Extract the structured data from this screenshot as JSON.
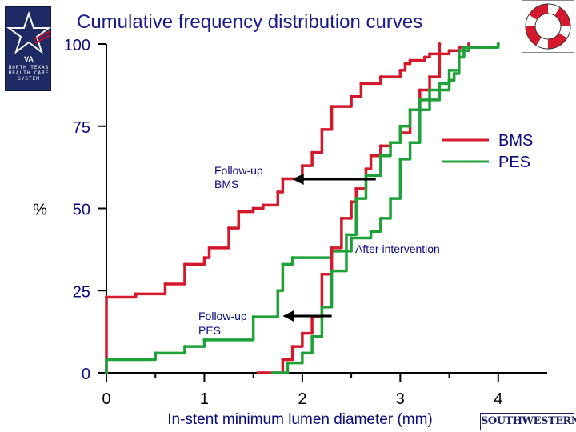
{
  "slide": {
    "title": "Cumulative frequency distribution curves",
    "logo_va_text": "NORTH TEXAS\nHEALTH CARE\nSYSTEM",
    "logo_va_initials": "VA",
    "logo_sw_text": "SOUTHWESTERN"
  },
  "chart_data": {
    "type": "line",
    "title": "Cumulative frequency distribution curves",
    "xlabel": "In-stent minimum lumen diameter (mm)",
    "ylabel": "%",
    "xlim": [
      0,
      4.5
    ],
    "ylim": [
      0,
      100
    ],
    "x_ticks": [
      "0",
      "1",
      "2",
      "3",
      "4"
    ],
    "y_ticks": [
      "0",
      "25",
      "50",
      "75",
      "100"
    ],
    "grid": false,
    "legend": {
      "position": "top-right",
      "entries": [
        {
          "name": "BMS",
          "color": "#d3192b"
        },
        {
          "name": "PES",
          "color": "#1fa13a"
        }
      ]
    },
    "series": [
      {
        "name": "BMS",
        "group": "Follow-up",
        "color": "#d3192b",
        "x": [
          0.0,
          0.0,
          0.3,
          0.6,
          0.8,
          1.0,
          1.05,
          1.25,
          1.35,
          1.5,
          1.6,
          1.75,
          1.8,
          2.0,
          2.1,
          2.2,
          2.3,
          2.5,
          2.6,
          2.8,
          3.0,
          3.05,
          3.1,
          3.25,
          3.3,
          3.4,
          3.5,
          3.6,
          3.7
        ],
        "y": [
          0,
          23,
          24,
          27,
          33,
          35,
          38,
          44,
          49,
          50,
          51,
          55,
          59,
          63,
          67,
          74,
          81,
          84,
          88,
          90,
          92,
          94,
          95,
          96,
          97,
          97,
          98,
          99,
          100
        ]
      },
      {
        "name": "PES",
        "group": "Follow-up",
        "color": "#1fa13a",
        "x": [
          0.0,
          0.0,
          0.5,
          0.8,
          1.0,
          1.5,
          1.75,
          1.8,
          1.9,
          2.0,
          2.3,
          2.5,
          2.7,
          2.8,
          2.9,
          3.0,
          3.1,
          3.2,
          3.3,
          3.4,
          3.5,
          3.55,
          3.6,
          3.7,
          3.8,
          3.9,
          4.0
        ],
        "y": [
          0,
          4,
          6,
          8,
          10,
          17,
          25,
          33,
          35,
          35,
          37,
          41,
          43,
          47,
          53,
          65,
          70,
          80,
          83,
          86,
          89,
          91,
          98,
          99,
          99,
          99,
          100
        ]
      },
      {
        "name": "BMS",
        "group": "After intervention",
        "color": "#d3192b",
        "x": [
          1.55,
          1.6,
          1.8,
          1.9,
          2.0,
          2.1,
          2.2,
          2.3,
          2.4,
          2.5,
          2.55,
          2.65,
          2.7,
          2.8,
          2.9,
          3.0,
          3.1,
          3.2,
          3.3,
          3.4
        ],
        "y": [
          0,
          0,
          4,
          8,
          12,
          17,
          30,
          38,
          47,
          52,
          56,
          62,
          66,
          69,
          70,
          73,
          80,
          86,
          90,
          100
        ]
      },
      {
        "name": "PES",
        "group": "After intervention",
        "color": "#1fa13a",
        "x": [
          1.7,
          1.75,
          1.85,
          2.0,
          2.1,
          2.2,
          2.3,
          2.45,
          2.55,
          2.65,
          2.8,
          2.9,
          3.0,
          3.1,
          3.2,
          3.3,
          3.4,
          3.5,
          3.6,
          3.65,
          3.8,
          4.0
        ],
        "y": [
          0,
          0,
          3,
          6,
          11,
          20,
          31,
          42,
          53,
          60,
          66,
          70,
          75,
          80,
          83,
          86,
          88,
          92,
          96,
          99,
          99,
          100
        ]
      }
    ],
    "annotations": [
      {
        "text": "Follow-up\nBMS",
        "arrow_from_x": 2.75,
        "arrow_to_x": 1.9,
        "y": 60
      },
      {
        "text": "After intervention",
        "x": 2.6,
        "y": 38
      },
      {
        "text": "Follow-up\nPES",
        "arrow_from_x": 2.3,
        "arrow_to_x": 1.8,
        "y": 17
      }
    ]
  }
}
